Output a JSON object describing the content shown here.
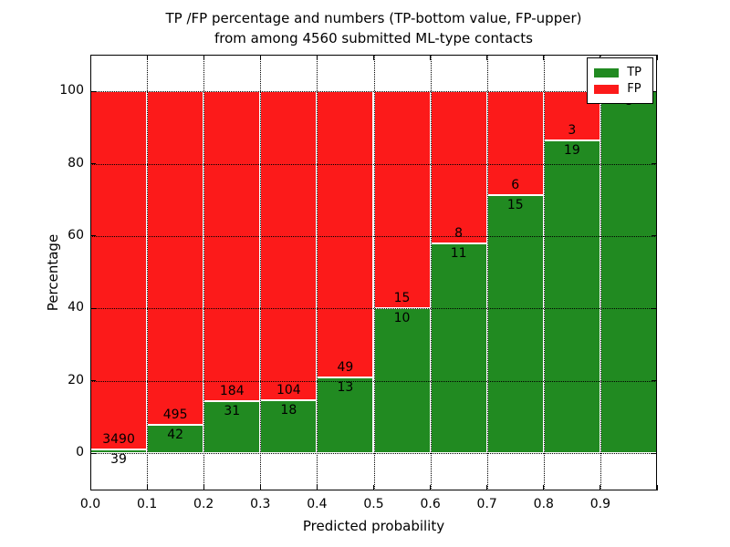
{
  "chart_data": {
    "type": "bar",
    "stacked": true,
    "normalized_to_percent": true,
    "title_line1": "TP /FP percentage and numbers (TP-bottom value, FP-upper)",
    "title_line2": "from among 4560 submitted ML-type contacts",
    "xlabel": "Predicted probability",
    "ylabel": "Percentage",
    "categories": [
      "0.0-0.1",
      "0.1-0.2",
      "0.2-0.3",
      "0.3-0.4",
      "0.4-0.5",
      "0.5-0.6",
      "0.6-0.7",
      "0.7-0.8",
      "0.8-0.9",
      "0.9-1.0"
    ],
    "x_tick_labels": [
      "0.0",
      "0.1",
      "0.2",
      "0.3",
      "0.4",
      "0.5",
      "0.6",
      "0.7",
      "0.8",
      "0.9"
    ],
    "y_tick_labels": [
      "0",
      "20",
      "40",
      "60",
      "80",
      "100"
    ],
    "y_tick_values": [
      0,
      20,
      40,
      60,
      80,
      100
    ],
    "xlim": [
      0.0,
      1.0
    ],
    "ylim": [
      -10.3,
      110.1
    ],
    "grid": "dotted",
    "legend_position": "upper right",
    "series": [
      {
        "name": "TP",
        "color": "#218a21",
        "values": [
          39,
          42,
          31,
          18,
          13,
          10,
          11,
          15,
          19,
          8
        ]
      },
      {
        "name": "FP",
        "color": "#fc1a1a",
        "values": [
          3490,
          495,
          184,
          104,
          49,
          15,
          8,
          6,
          3,
          0
        ]
      }
    ],
    "tp_percent": [
      1.1,
      7.8,
      14.4,
      14.8,
      21.0,
      40.0,
      57.9,
      71.4,
      86.4,
      100.0
    ],
    "total_contacts": "4560",
    "bar_edge_color": "#ffffff"
  },
  "legend": {
    "tp_label": "TP",
    "fp_label": "FP"
  }
}
